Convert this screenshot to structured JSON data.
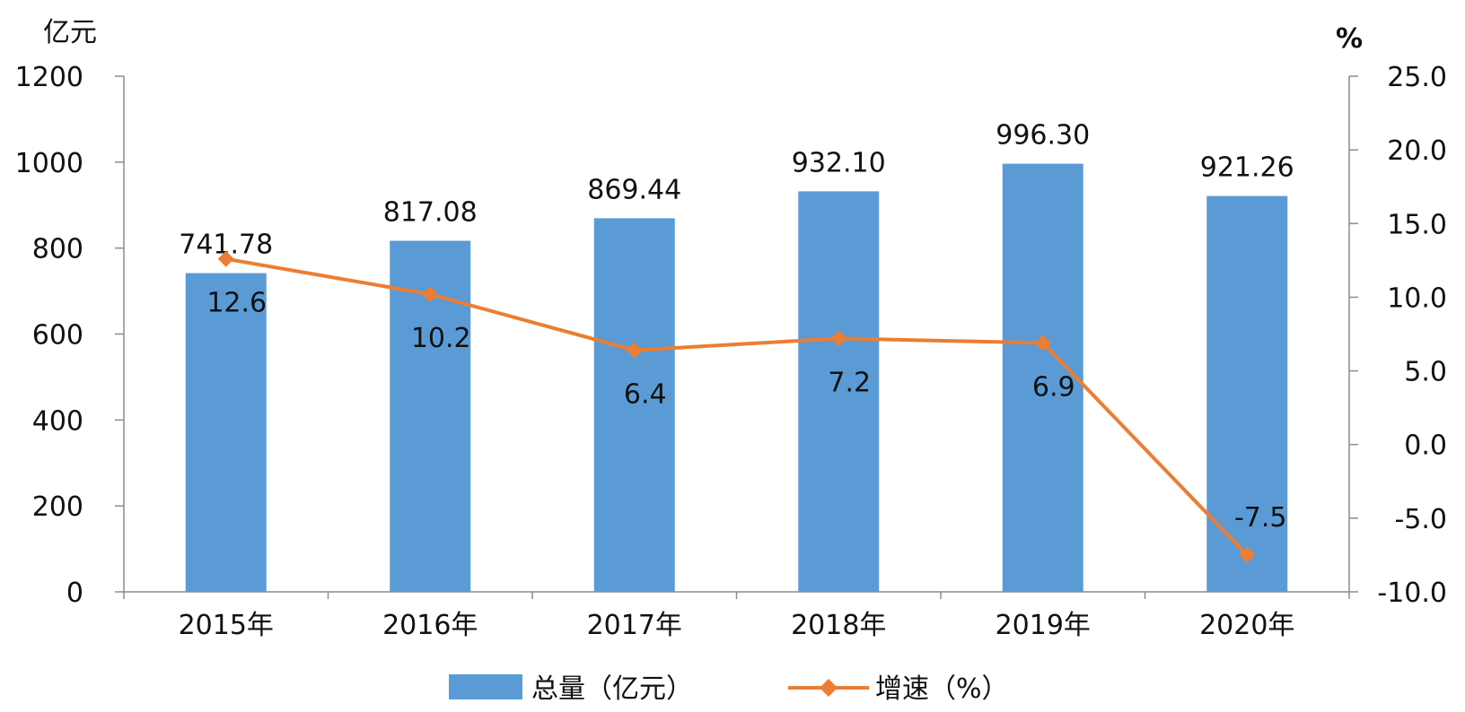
{
  "chart_data": {
    "type": "bar+line",
    "categories": [
      "2015年",
      "2016年",
      "2017年",
      "2018年",
      "2019年",
      "2020年"
    ],
    "series": [
      {
        "name": "总量（亿元）",
        "type": "bar",
        "axis": "left",
        "color": "#5b9bd5",
        "values": [
          741.78,
          817.08,
          869.44,
          932.1,
          996.3,
          921.26
        ],
        "labels": [
          "741.78",
          "817.08",
          "869.44",
          "932.10",
          "996.30",
          "921.26"
        ]
      },
      {
        "name": "增速（%）",
        "type": "line",
        "axis": "right",
        "color": "#ed7d31",
        "marker": "diamond",
        "values": [
          12.6,
          10.2,
          6.4,
          7.2,
          6.9,
          -7.5
        ],
        "labels": [
          "12.6",
          "10.2",
          "6.4",
          "7.2",
          "6.9",
          "-7.5"
        ]
      }
    ],
    "y_left": {
      "unit": "亿元",
      "ylim": [
        0,
        1200
      ],
      "ticks": [
        "0",
        "200",
        "400",
        "600",
        "800",
        "1000",
        "1200"
      ]
    },
    "y_right": {
      "unit": "%",
      "ylim": [
        -10,
        25
      ],
      "ticks": [
        "-10.0",
        "-5.0",
        "0.0",
        "5.0",
        "10.0",
        "15.0",
        "20.0",
        "25.0"
      ]
    },
    "grid": false,
    "legend": "bottom"
  }
}
